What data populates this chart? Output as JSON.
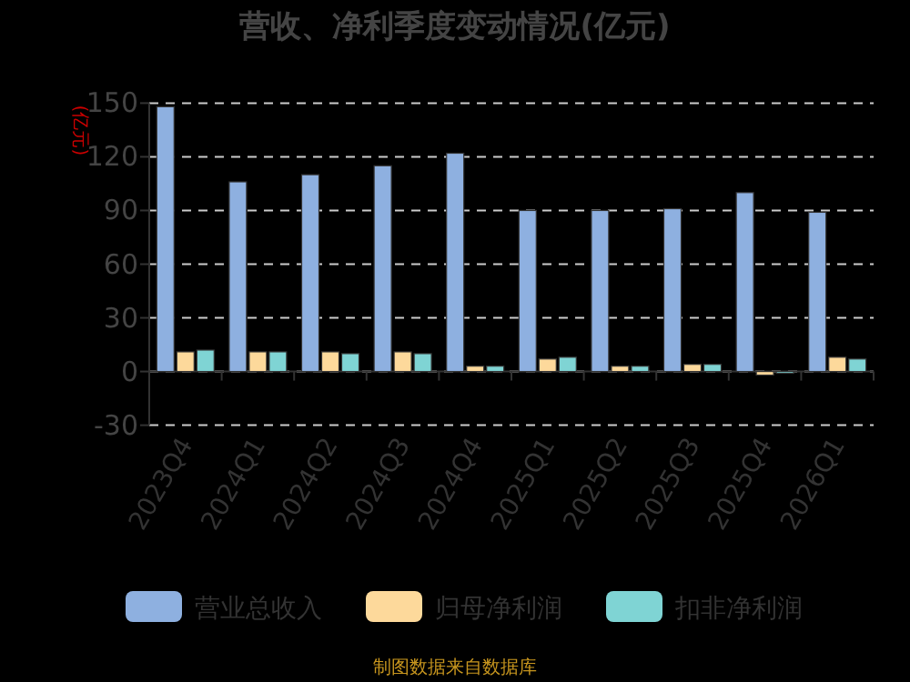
{
  "chart_data": {
    "type": "bar",
    "title": "营收、净利季度变动情况(亿元)",
    "ylabel": "(亿元)",
    "categories": [
      "2023Q4",
      "2024Q1",
      "2024Q2",
      "2024Q3",
      "2024Q4",
      "2025Q1",
      "2025Q2",
      "2025Q3",
      "2025Q4",
      "2026Q1"
    ],
    "series": [
      {
        "name": "营业总收入",
        "color": "#8eb0e0",
        "values": [
          148,
          106,
          110,
          115,
          122,
          90,
          90,
          91,
          100,
          89
        ]
      },
      {
        "name": "归母净利润",
        "color": "#fdd99b",
        "values": [
          11,
          11,
          11,
          11,
          3,
          7,
          3,
          4,
          -2,
          8
        ]
      },
      {
        "name": "扣非净利润",
        "color": "#7fd4d4",
        "values": [
          12,
          11,
          10,
          10,
          3,
          8,
          3,
          4,
          -1,
          7
        ]
      }
    ],
    "ylim": [
      -30,
      150
    ],
    "yticks": [
      -30,
      0,
      30,
      60,
      90,
      120,
      150
    ],
    "grid": "y",
    "legend": "bottom",
    "annotations": [
      "制图数据来自数据库"
    ]
  }
}
